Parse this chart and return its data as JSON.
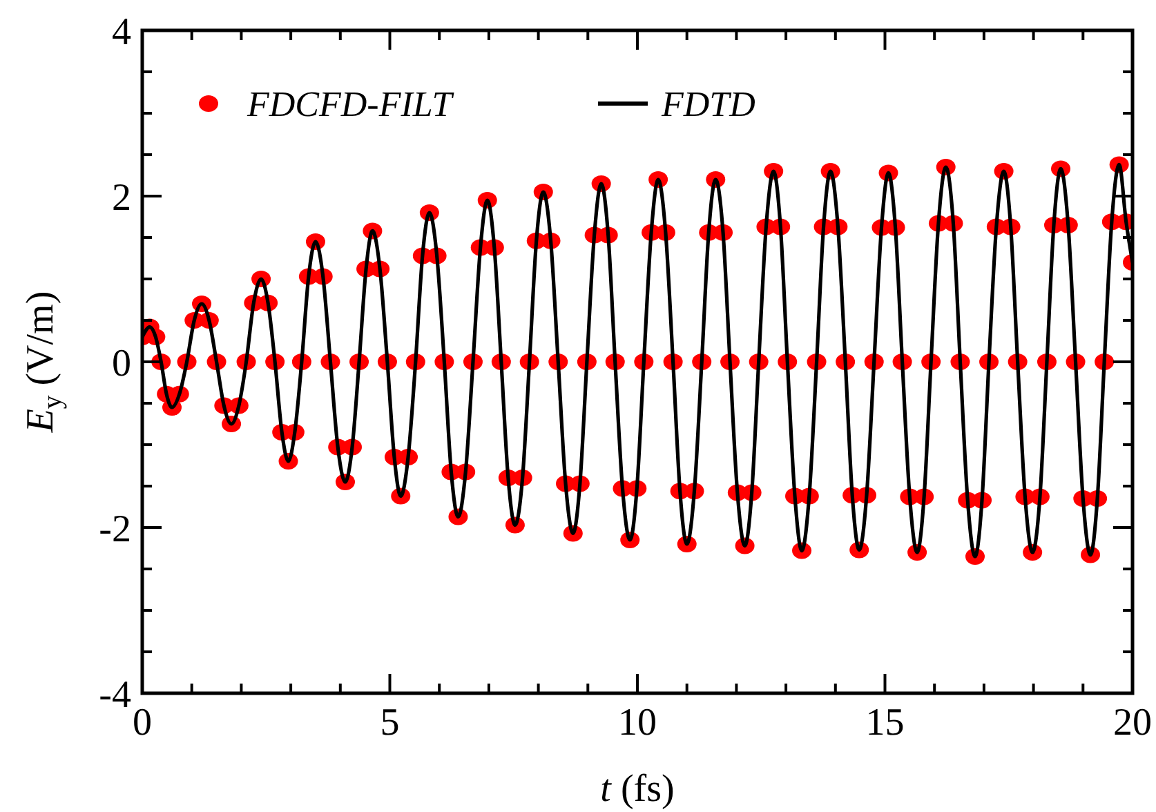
{
  "chart_data": {
    "type": "line",
    "xlabel": "t (fs)",
    "ylabel": "E$_{y}$ (V/m)",
    "xlim": [
      0,
      20
    ],
    "ylim": [
      -4,
      4
    ],
    "xticks": [
      0,
      {
        "value": 1,
        "label": null
      },
      {
        "value": 2,
        "label": null
      },
      {
        "value": 3,
        "label": null
      },
      {
        "value": 4,
        "label": null
      },
      5,
      {
        "value": 6,
        "label": null
      },
      {
        "value": 7,
        "label": null
      },
      {
        "value": 8,
        "label": null
      },
      {
        "value": 9,
        "label": null
      },
      10,
      {
        "value": 11,
        "label": null
      },
      {
        "value": 12,
        "label": null
      },
      {
        "value": 13,
        "label": null
      },
      {
        "value": 14,
        "label": null
      },
      15,
      {
        "value": 16,
        "label": null
      },
      {
        "value": 17,
        "label": null
      },
      {
        "value": 18,
        "label": null
      },
      {
        "value": 19,
        "label": null
      },
      20
    ],
    "yticks": [
      -4,
      {
        "value": -3.5,
        "label": null
      },
      {
        "value": -3,
        "label": null
      },
      {
        "value": -2.5,
        "label": null
      },
      -2,
      {
        "value": -1.5,
        "label": null
      },
      {
        "value": -1,
        "label": null
      },
      {
        "value": -0.5,
        "label": null
      },
      0,
      {
        "value": 0.5,
        "label": null
      },
      {
        "value": 1,
        "label": null
      },
      {
        "value": 1.5,
        "label": null
      },
      2,
      {
        "value": 2.5,
        "label": null
      },
      {
        "value": 3,
        "label": null
      },
      {
        "value": 3.5,
        "label": null
      },
      4
    ],
    "x": [
      0,
      0.15,
      0.27,
      0.38,
      0.49,
      0.6,
      0.75,
      0.9,
      1.05,
      1.2,
      1.35,
      1.5,
      1.65,
      1.8,
      1.95,
      2.1,
      2.25,
      2.4,
      2.54,
      2.68,
      2.82,
      2.95,
      3.08,
      3.22,
      3.36,
      3.5,
      3.65,
      3.8,
      3.95,
      4.1,
      4.24,
      4.38,
      4.52,
      4.65,
      4.8,
      4.95,
      5.09,
      5.22,
      5.37,
      5.52,
      5.66,
      5.8,
      5.95,
      6.1,
      6.24,
      6.38,
      6.53,
      6.68,
      6.83,
      6.97,
      7.11,
      7.25,
      7.39,
      7.53,
      7.68,
      7.82,
      7.96,
      8.1,
      8.25,
      8.4,
      8.55,
      8.7,
      8.84,
      8.98,
      9.13,
      9.27,
      9.41,
      9.55,
      9.7,
      9.85,
      9.99,
      10.13,
      10.28,
      10.42,
      10.57,
      10.72,
      10.86,
      11.0,
      11.15,
      11.3,
      11.44,
      11.58,
      11.73,
      11.87,
      12.02,
      12.17,
      12.31,
      12.45,
      12.6,
      12.75,
      12.89,
      13.03,
      13.18,
      13.32,
      13.47,
      13.62,
      13.76,
      13.9,
      14.05,
      14.2,
      14.34,
      14.48,
      14.63,
      14.78,
      14.93,
      15.07,
      15.21,
      15.35,
      15.5,
      15.65,
      15.79,
      15.93,
      16.08,
      16.23,
      16.38,
      16.52,
      16.67,
      16.82,
      16.96,
      17.1,
      17.25,
      17.4,
      17.54,
      17.68,
      17.83,
      17.98,
      18.13,
      18.27,
      18.41,
      18.55,
      18.7,
      18.85,
      19.0,
      19.15,
      19.29,
      19.43,
      19.58,
      19.73,
      19.87,
      20
    ],
    "series": [
      {
        "name": "FDCFD-FILT",
        "type": "scatter",
        "marker": "circle",
        "color": "#ff0000",
        "values": [
          0.3,
          0.42,
          0.3,
          0,
          -0.39,
          -0.55,
          -0.39,
          0,
          0.5,
          0.7,
          0.5,
          0,
          -0.53,
          -0.75,
          -0.53,
          0,
          0.71,
          1.0,
          0.71,
          0,
          -0.85,
          -1.2,
          -0.85,
          0,
          1.03,
          1.45,
          1.03,
          0,
          -1.03,
          -1.45,
          -1.03,
          0,
          1.12,
          1.58,
          1.12,
          0,
          -1.15,
          -1.62,
          -1.15,
          0,
          1.28,
          1.8,
          1.28,
          0,
          -1.33,
          -1.87,
          -1.33,
          0,
          1.38,
          1.95,
          1.38,
          0,
          -1.4,
          -1.97,
          -1.4,
          0,
          1.46,
          2.05,
          1.46,
          0,
          -1.47,
          -2.07,
          -1.47,
          0,
          1.53,
          2.15,
          1.53,
          0,
          -1.53,
          -2.15,
          -1.53,
          0,
          1.56,
          2.2,
          1.56,
          0,
          -1.56,
          -2.2,
          -1.56,
          0,
          1.56,
          2.2,
          1.56,
          0,
          -1.58,
          -2.22,
          -1.58,
          0,
          1.63,
          2.3,
          1.63,
          0,
          -1.62,
          -2.28,
          -1.62,
          0,
          1.63,
          2.3,
          1.63,
          0,
          -1.61,
          -2.27,
          -1.61,
          0,
          1.62,
          2.28,
          1.62,
          0,
          -1.63,
          -2.3,
          -1.63,
          0,
          1.67,
          2.35,
          1.67,
          0,
          -1.67,
          -2.35,
          -1.67,
          0,
          1.63,
          2.3,
          1.63,
          0,
          -1.63,
          -2.3,
          -1.63,
          0,
          1.65,
          2.33,
          1.65,
          0,
          -1.65,
          -2.33,
          -1.65,
          0,
          1.69,
          2.38,
          1.69,
          1.2
        ]
      },
      {
        "name": "FDTD",
        "line_style": "solid",
        "color": "#000000",
        "values": [
          0.3,
          0.42,
          0.3,
          0,
          -0.39,
          -0.55,
          -0.39,
          0,
          0.5,
          0.7,
          0.5,
          0,
          -0.53,
          -0.75,
          -0.53,
          0,
          0.71,
          1.0,
          0.71,
          0,
          -0.85,
          -1.2,
          -0.85,
          0,
          1.03,
          1.45,
          1.03,
          0,
          -1.03,
          -1.45,
          -1.03,
          0,
          1.12,
          1.58,
          1.12,
          0,
          -1.15,
          -1.62,
          -1.15,
          0,
          1.28,
          1.8,
          1.28,
          0,
          -1.33,
          -1.87,
          -1.33,
          0,
          1.38,
          1.95,
          1.38,
          0,
          -1.4,
          -1.97,
          -1.4,
          0,
          1.46,
          2.05,
          1.46,
          0,
          -1.47,
          -2.07,
          -1.47,
          0,
          1.53,
          2.15,
          1.53,
          0,
          -1.53,
          -2.15,
          -1.53,
          0,
          1.56,
          2.2,
          1.56,
          0,
          -1.56,
          -2.2,
          -1.56,
          0,
          1.56,
          2.2,
          1.56,
          0,
          -1.58,
          -2.22,
          -1.58,
          0,
          1.63,
          2.3,
          1.63,
          0,
          -1.62,
          -2.28,
          -1.62,
          0,
          1.63,
          2.3,
          1.63,
          0,
          -1.61,
          -2.27,
          -1.61,
          0,
          1.62,
          2.28,
          1.62,
          0,
          -1.63,
          -2.3,
          -1.63,
          0,
          1.67,
          2.35,
          1.67,
          0,
          -1.67,
          -2.35,
          -1.67,
          0,
          1.63,
          2.3,
          1.63,
          0,
          -1.63,
          -2.3,
          -1.63,
          0,
          1.65,
          2.33,
          1.65,
          0,
          -1.65,
          -2.33,
          -1.65,
          0,
          1.69,
          2.38,
          1.69,
          1.2
        ]
      }
    ],
    "legend": "top left",
    "grid": false
  }
}
